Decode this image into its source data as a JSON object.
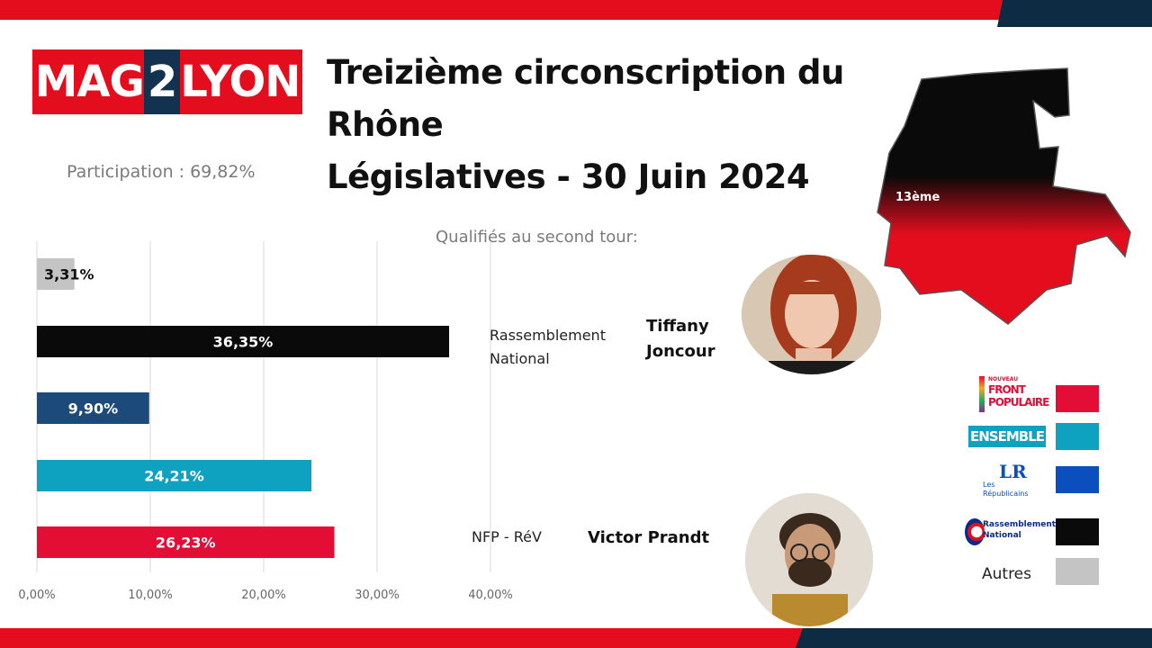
{
  "brand": {
    "logo_part1": "MAG",
    "logo_part2": "2",
    "logo_part3": "LYON"
  },
  "title": {
    "line1": "Treizième circonscription du",
    "line2": "Rhône",
    "line3": "Législatives - 30 Juin 2024"
  },
  "participation": "Participation : 69,82%",
  "qualified_label": "Qualifiés au second tour:",
  "map": {
    "label": "13ème",
    "top_color": "#0a0a0a",
    "bottom_color": "#e30d1e"
  },
  "candidates": [
    {
      "party": [
        "Rassemblement",
        "National"
      ],
      "name": [
        "Tiffany",
        "Joncour"
      ]
    },
    {
      "party": [
        "NFP - RéV"
      ],
      "name": [
        "Victor Prandt"
      ]
    }
  ],
  "legend": {
    "items": [
      {
        "logo": [
          "NOUVEAU",
          "FRONT",
          "POPULAIRE"
        ],
        "color": "#e30d36"
      },
      {
        "logo": [
          "ENSEMBLE"
        ],
        "color": "#0fa2c0"
      },
      {
        "logo": [
          "LR",
          "Les",
          "Républicains"
        ],
        "color": "#0a4fbd"
      },
      {
        "logo": [
          "Rassemblement",
          "National"
        ],
        "color": "#0a0a0a"
      },
      {
        "logo": [],
        "color": "#c4c4c4"
      }
    ],
    "autres_label": "Autres"
  },
  "chart_data": {
    "type": "bar",
    "orientation": "horizontal",
    "categories": [
      "Autres",
      "Rassemblement National",
      "Les Républicains",
      "Ensemble",
      "Nouveau Front Populaire"
    ],
    "values": [
      3.31,
      36.35,
      9.9,
      24.21,
      26.23
    ],
    "value_labels": [
      "3,31%",
      "36,35%",
      "9,90%",
      "24,21%",
      "26,23%"
    ],
    "colors": [
      "#c4c4c4",
      "#0a0a0a",
      "#1c4a7a",
      "#0fa2c0",
      "#e30d36"
    ],
    "xlim": [
      0,
      40
    ],
    "xticks": [
      0,
      10,
      20,
      30,
      40
    ],
    "xtick_labels": [
      "0,00%",
      "10,00%",
      "20,00%",
      "30,00%",
      "40,00%"
    ],
    "grid": true
  }
}
